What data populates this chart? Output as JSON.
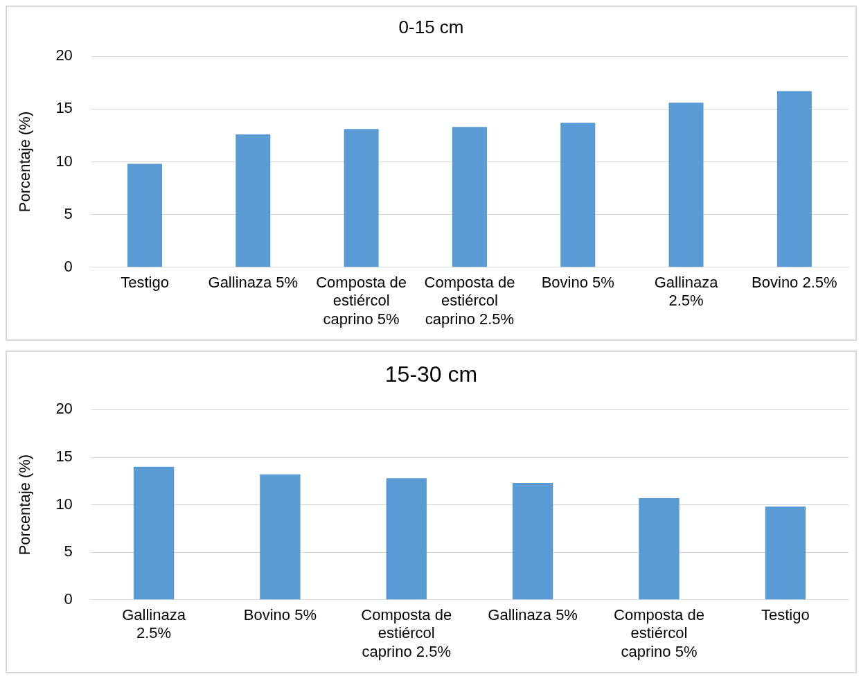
{
  "chart_data": [
    {
      "type": "bar",
      "title": "0-15 cm",
      "ylabel": "Porcentaje (%)",
      "categories": [
        "Testigo",
        "Gallinaza 5%",
        "Composta de estiércol caprino 5%",
        "Composta de estiércol caprino 2.5%",
        "Bovino 5%",
        "Gallinaza 2.5%",
        "Bovino 2.5%"
      ],
      "values": [
        9.8,
        12.6,
        13.1,
        13.3,
        13.7,
        15.6,
        16.7
      ],
      "color": "#5b9bd5",
      "ylim": [
        0,
        20
      ],
      "yticks": [
        0,
        5,
        10,
        15,
        20
      ],
      "grid": "y",
      "legend": false
    },
    {
      "type": "bar",
      "title": "15-30 cm",
      "ylabel": "Porcentaje (%)",
      "categories": [
        "Gallinaza 2.5%",
        "Bovino 5%",
        "Composta de estiércol caprino 2.5%",
        "Gallinaza 5%",
        "Composta de estiércol caprino 5%",
        "Testigo"
      ],
      "values": [
        14.0,
        13.2,
        12.8,
        12.3,
        10.7,
        9.8
      ],
      "color": "#5b9bd5",
      "ylim": [
        0,
        20
      ],
      "yticks": [
        0,
        5,
        10,
        15,
        20
      ],
      "grid": "y",
      "legend": false
    }
  ]
}
